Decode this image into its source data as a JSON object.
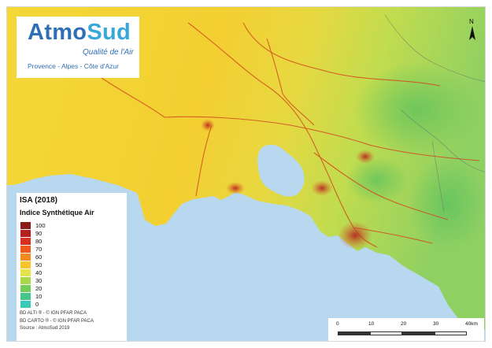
{
  "logo": {
    "part_a": "Atmo",
    "part_b": "Sud",
    "tagline": "Qualité de l'Air",
    "region": "Provence - Alpes - Côte d'Azur"
  },
  "north_arrow": {
    "letter": "N"
  },
  "legend": {
    "title": "ISA (2018)",
    "subtitle": "Indice Synthétique Air",
    "items": [
      {
        "label": "100",
        "color": "#8b1a1a"
      },
      {
        "label": "90",
        "color": "#b31e1e"
      },
      {
        "label": "80",
        "color": "#d7301f"
      },
      {
        "label": "70",
        "color": "#ef5a1a"
      },
      {
        "label": "60",
        "color": "#f58a1f"
      },
      {
        "label": "50",
        "color": "#f7c52a"
      },
      {
        "label": "40",
        "color": "#e6e44a"
      },
      {
        "label": "30",
        "color": "#a9d94a"
      },
      {
        "label": "20",
        "color": "#72cc57"
      },
      {
        "label": "10",
        "color": "#44c58a"
      },
      {
        "label": "0",
        "color": "#39c9b7"
      }
    ],
    "credits": [
      "BD ALTI ® - © IGN PFAR PACA",
      "BD CARTO ® - © IGN PFAR PACA",
      "Source : AtmoSud 2019"
    ]
  },
  "scale": {
    "ticks": [
      "0",
      "10",
      "20",
      "30",
      "40km"
    ]
  },
  "colors": {
    "sea": "#b7d8ee",
    "land_yellow": "#f4de3c",
    "land_orange": "#f3c234",
    "land_green": "#9fd45a",
    "road": "#d24b1f",
    "hotspot": "#b21e1e"
  }
}
